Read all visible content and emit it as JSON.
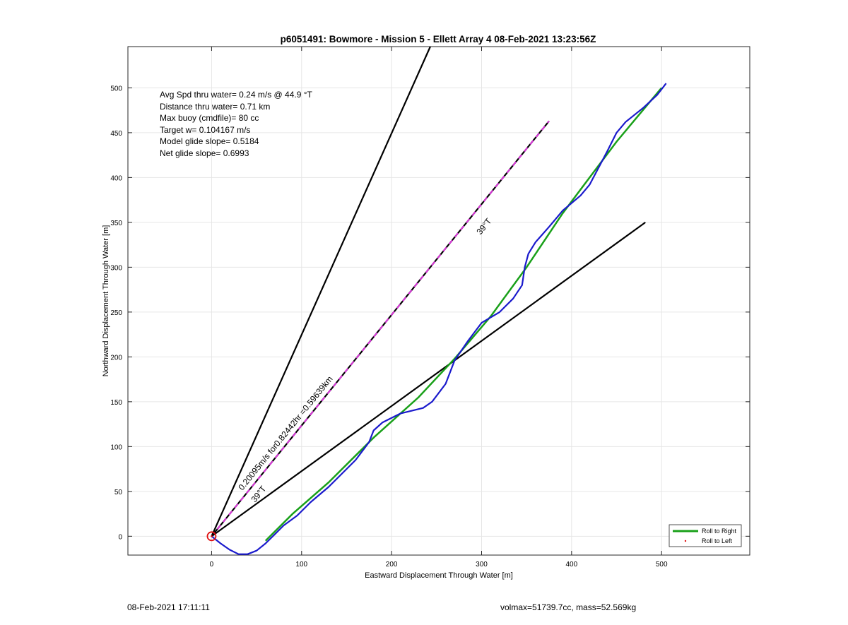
{
  "chart_data": {
    "type": "line",
    "title": "p6051491: Bowmore - Mission 5 - Ellett Array 4 08-Feb-2021 13:23:56Z",
    "xlabel": "Eastward Displacement Through Water [m]",
    "ylabel": "Northward Displacement Through Water [m]",
    "xlim": [
      -93,
      598
    ],
    "ylim": [
      -21,
      546
    ],
    "xticks": [
      0,
      100,
      200,
      300,
      400,
      500
    ],
    "yticks": [
      0,
      50,
      100,
      150,
      200,
      250,
      300,
      350,
      400,
      450,
      500
    ],
    "grid": true,
    "legend_position": "bottom-right",
    "legend": [
      "Roll to Right",
      "Roll to Left"
    ],
    "annotations": [
      "Avg Spd thru water=  0.24 m/s @  44.9 °T",
      "Distance thru water=  0.71 km",
      "Max buoy (cmdfile)= 80 cc",
      "Target w= 0.104167 m/s",
      "Model glide slope= 0.5184",
      "Net glide slope= 0.6993"
    ],
    "line_labels": {
      "current": "0.20095m/s for0.82442hr =0.59639km",
      "bearing_lower": "39°T",
      "bearing_upper": "39°T"
    },
    "series": [
      {
        "name": "Roll to Right",
        "color": "#19a019",
        "x": [
          60,
          90,
          130,
          180,
          230,
          270,
          310,
          350,
          390,
          450,
          500
        ],
        "y": [
          -5,
          25,
          60,
          110,
          155,
          198,
          245,
          300,
          360,
          440,
          500
        ]
      },
      {
        "name": "Roll to Left",
        "color": "#e01010",
        "x": [
          0
        ],
        "y": [
          0
        ]
      }
    ],
    "track": {
      "color": "#1a1acc",
      "x": [
        0,
        10,
        20,
        30,
        40,
        50,
        60,
        70,
        80,
        95,
        110,
        130,
        160,
        175,
        180,
        190,
        210,
        235,
        245,
        260,
        270,
        285,
        300,
        320,
        335,
        345,
        348,
        352,
        360,
        375,
        390,
        410,
        420,
        440,
        450,
        460,
        480,
        495,
        505
      ],
      "y": [
        0,
        -8,
        -15,
        -20,
        -20,
        -16,
        -8,
        2,
        12,
        23,
        38,
        55,
        85,
        105,
        118,
        127,
        137,
        143,
        150,
        170,
        196,
        218,
        238,
        250,
        265,
        280,
        300,
        315,
        328,
        345,
        363,
        380,
        392,
        430,
        450,
        462,
        478,
        492,
        505
      ]
    },
    "reference_lines": [
      {
        "name": "current-vector",
        "x": [
          0,
          375
        ],
        "y": [
          0,
          463
        ],
        "color": "#000000",
        "dash_color": "#dd33dd"
      },
      {
        "name": "bearing-line-upper",
        "x": [
          0,
          243
        ],
        "y": [
          0,
          546
        ],
        "color": "#000000"
      },
      {
        "name": "bearing-line-lower",
        "x": [
          0,
          482
        ],
        "y": [
          0,
          350
        ],
        "color": "#000000"
      }
    ],
    "start_marker": {
      "x": 0,
      "y": 0,
      "color": "#e01010"
    }
  },
  "footer": {
    "timestamp": "08-Feb-2021 17:11:11",
    "stats": "volmax=51739.7cc, mass=52.569kg"
  }
}
